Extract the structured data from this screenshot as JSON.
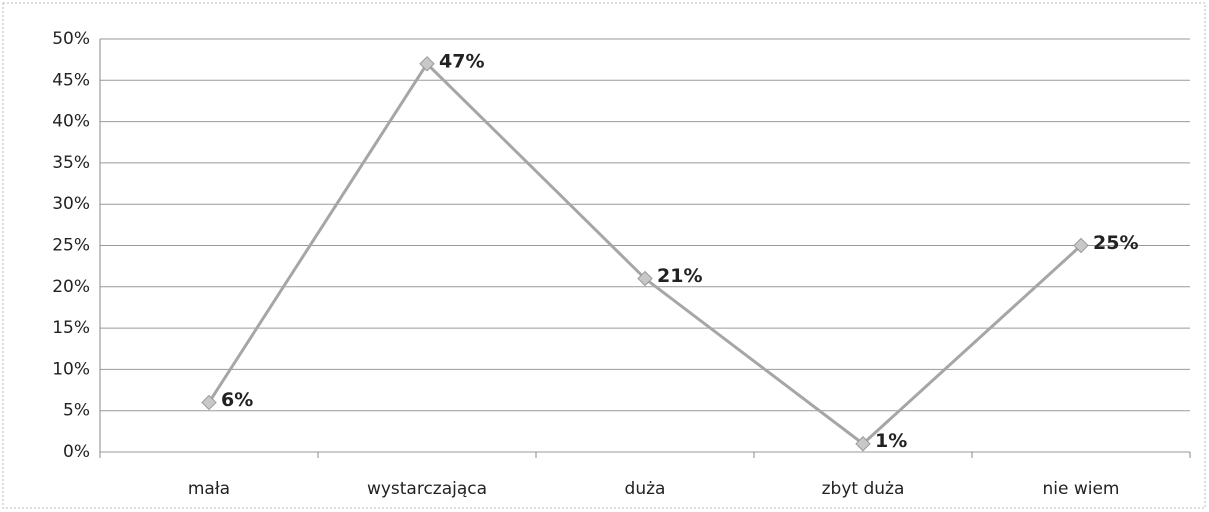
{
  "chart_data": {
    "type": "line",
    "categories": [
      "mała",
      "wystarczająca",
      "duża",
      "zbyt duża",
      "nie wiem"
    ],
    "values": [
      6,
      47,
      21,
      1,
      25
    ],
    "value_labels": [
      "6%",
      "47%",
      "21%",
      "1%",
      "25%"
    ],
    "color": "#a6a6a6",
    "ylim": [
      0,
      50
    ],
    "yticks": [
      {
        "value": 0,
        "label": "0%"
      },
      {
        "value": 5,
        "label": "5%"
      },
      {
        "value": 10,
        "label": "10%"
      },
      {
        "value": 15,
        "label": "15%"
      },
      {
        "value": 20,
        "label": "20%"
      },
      {
        "value": 25,
        "label": "25%"
      },
      {
        "value": 30,
        "label": "30%"
      },
      {
        "value": 35,
        "label": "35%"
      },
      {
        "value": 40,
        "label": "40%"
      },
      {
        "value": 45,
        "label": "45%"
      },
      {
        "value": 50,
        "label": "50%"
      }
    ],
    "grid": true
  }
}
